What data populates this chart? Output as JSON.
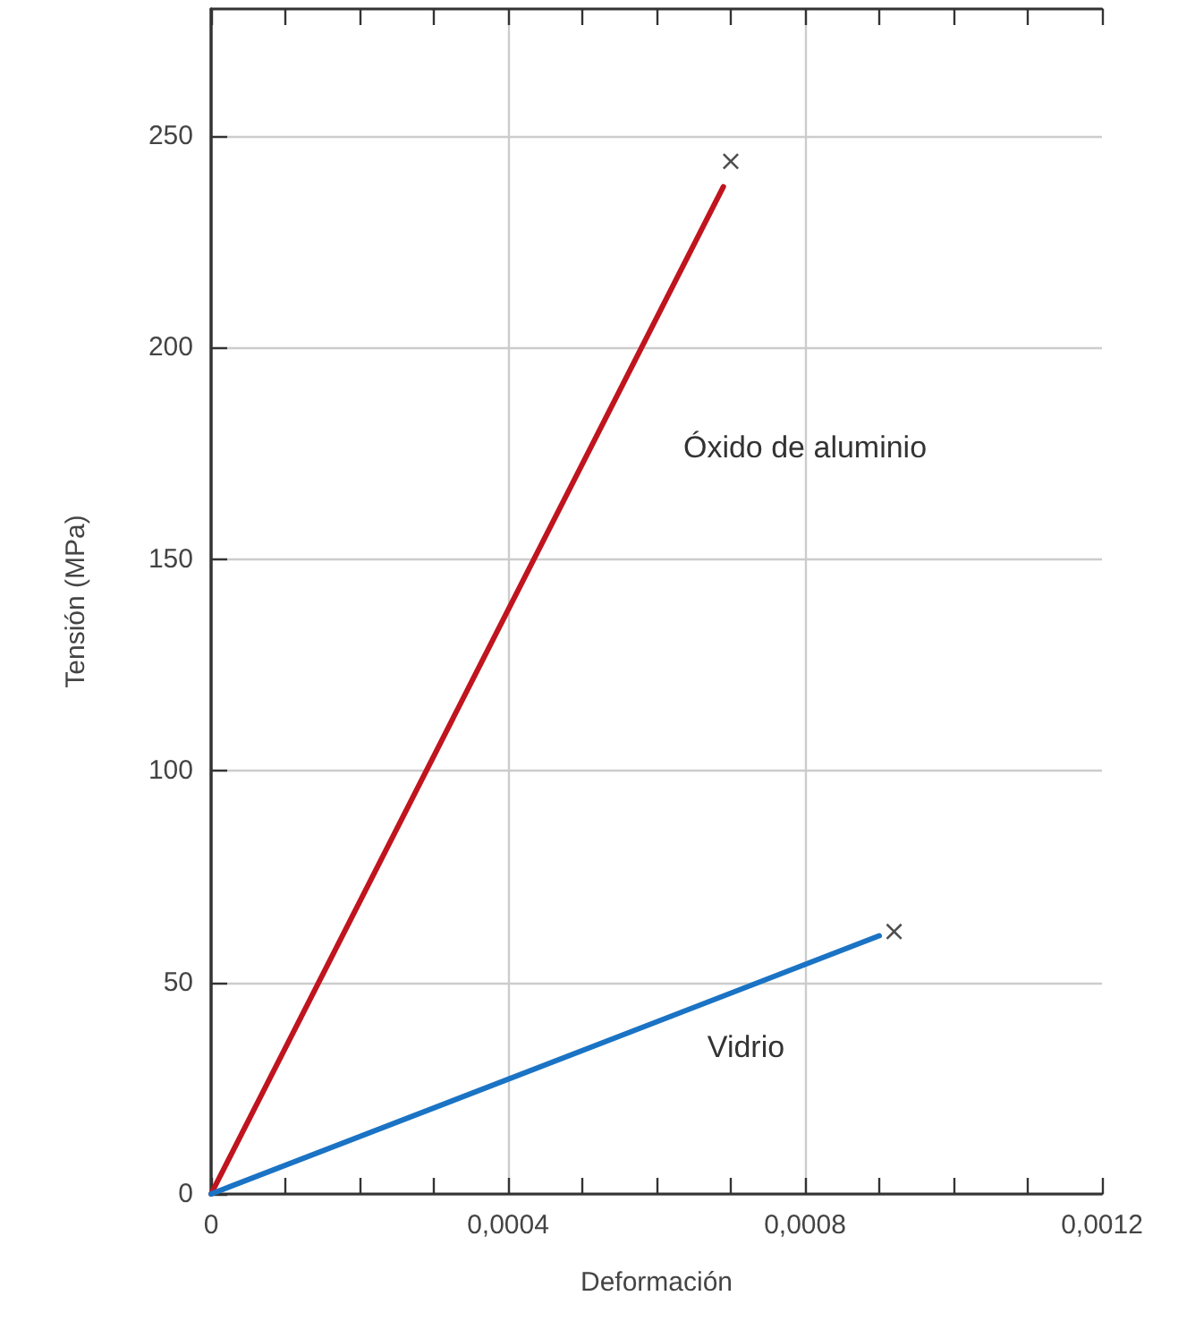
{
  "chart_data": {
    "type": "line",
    "xlabel": "Deformación",
    "ylabel": "Tensión (MPa)",
    "xlim": [
      0,
      0.0012
    ],
    "ylim": [
      0,
      280
    ],
    "xticks": [
      0,
      {
        "value": 0.0001,
        "label": null
      },
      {
        "value": 0.0002,
        "label": null
      },
      {
        "value": 0.0003,
        "label": null
      },
      {
        "value": 0.0004,
        "label": "0,0004"
      },
      {
        "value": 0.0005,
        "label": null
      },
      {
        "value": 0.0006,
        "label": null
      },
      {
        "value": 0.0007,
        "label": null
      },
      {
        "value": 0.0008,
        "label": "0,0008"
      },
      {
        "value": 0.0009,
        "label": null
      },
      {
        "value": 0.001,
        "label": null
      },
      {
        "value": 0.0011,
        "label": null
      },
      {
        "value": 0.0012,
        "label": "0,0012"
      }
    ],
    "yticks": [
      0,
      50,
      100,
      150,
      200,
      250
    ],
    "grid": true,
    "marker": "none",
    "line_style": "solid",
    "series": [
      {
        "color": "#c0141e",
        "x": [
          0,
          0.00069
        ],
        "values": [
          0,
          238
        ]
      },
      {
        "color": "#1a73c4",
        "x": [
          0,
          0.0009
        ],
        "values": [
          0,
          61
        ]
      },
      {
        "type": "scatter",
        "marker": "cross",
        "color": "#222222",
        "x": [
          0.0007,
          0.00092
        ],
        "values": [
          244,
          62
        ]
      }
    ],
    "annotations": [
      "Óxido de aluminio",
      "Vidrio"
    ]
  }
}
